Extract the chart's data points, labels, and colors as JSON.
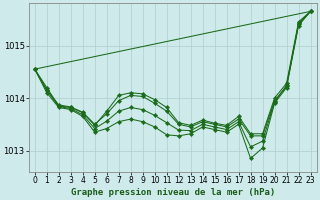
{
  "title": "Graphe pression niveau de la mer (hPa)",
  "bg_color": "#ceeaea",
  "grid_color": "#aed0d0",
  "line_color": "#1a6b1a",
  "xlim": [
    -0.5,
    23.5
  ],
  "ylim": [
    1012.6,
    1015.8
  ],
  "yticks": [
    1013,
    1014,
    1015
  ],
  "xticks": [
    0,
    1,
    2,
    3,
    4,
    5,
    6,
    7,
    8,
    9,
    10,
    11,
    12,
    13,
    14,
    15,
    16,
    17,
    18,
    19,
    20,
    21,
    22,
    23
  ],
  "straight_line": [
    [
      0,
      1014.55
    ],
    [
      23,
      1015.65
    ]
  ],
  "line_main_x": [
    0,
    1,
    2,
    3,
    4,
    5,
    6,
    7,
    8,
    9,
    10,
    11,
    12,
    13,
    14,
    15,
    16,
    17,
    18,
    19,
    20,
    21,
    22,
    23
  ],
  "line_main_y": [
    1014.55,
    1014.2,
    1013.85,
    1013.82,
    1013.72,
    1013.48,
    1013.75,
    1014.05,
    1014.1,
    1014.08,
    1013.97,
    1013.82,
    1013.53,
    1013.48,
    1013.58,
    1013.52,
    1013.48,
    1013.65,
    1013.32,
    1013.32,
    1014.0,
    1014.28,
    1015.45,
    1015.65
  ],
  "line_smooth_x": [
    0,
    1,
    2,
    3,
    4,
    5,
    6,
    7,
    8,
    9,
    10,
    11,
    12,
    13,
    14,
    15,
    16,
    17,
    18,
    19,
    20,
    21,
    22,
    23
  ],
  "line_smooth_y": [
    1014.55,
    1014.15,
    1013.87,
    1013.83,
    1013.73,
    1013.5,
    1013.7,
    1013.95,
    1014.05,
    1014.03,
    1013.9,
    1013.75,
    1013.5,
    1013.45,
    1013.55,
    1013.5,
    1013.45,
    1013.6,
    1013.28,
    1013.28,
    1013.95,
    1014.22,
    1015.42,
    1015.65
  ],
  "line_low_x": [
    0,
    1,
    2,
    3,
    4,
    5,
    6,
    7,
    8,
    9,
    10,
    11,
    12,
    13,
    14,
    15,
    16,
    17,
    18,
    19,
    20,
    21,
    22,
    23
  ],
  "line_low_y": [
    1014.55,
    1014.1,
    1013.82,
    1013.78,
    1013.65,
    1013.35,
    1013.42,
    1013.55,
    1013.6,
    1013.55,
    1013.45,
    1013.3,
    1013.28,
    1013.32,
    1013.45,
    1013.4,
    1013.35,
    1013.5,
    1012.85,
    1013.05,
    1013.9,
    1014.2,
    1015.38,
    1015.65
  ],
  "line_mid_x": [
    0,
    1,
    2,
    3,
    4,
    5,
    6,
    7,
    8,
    9,
    10,
    11,
    12,
    13,
    14,
    15,
    16,
    17,
    18,
    19,
    20,
    21,
    22,
    23
  ],
  "line_mid_y": [
    1014.55,
    1014.15,
    1013.84,
    1013.8,
    1013.68,
    1013.42,
    1013.56,
    1013.75,
    1013.82,
    1013.78,
    1013.67,
    1013.53,
    1013.39,
    1013.38,
    1013.5,
    1013.45,
    1013.4,
    1013.55,
    1013.07,
    1013.18,
    1013.93,
    1014.24,
    1015.4,
    1015.65
  ],
  "title_fontsize": 6.5,
  "tick_fontsize": 5.5
}
